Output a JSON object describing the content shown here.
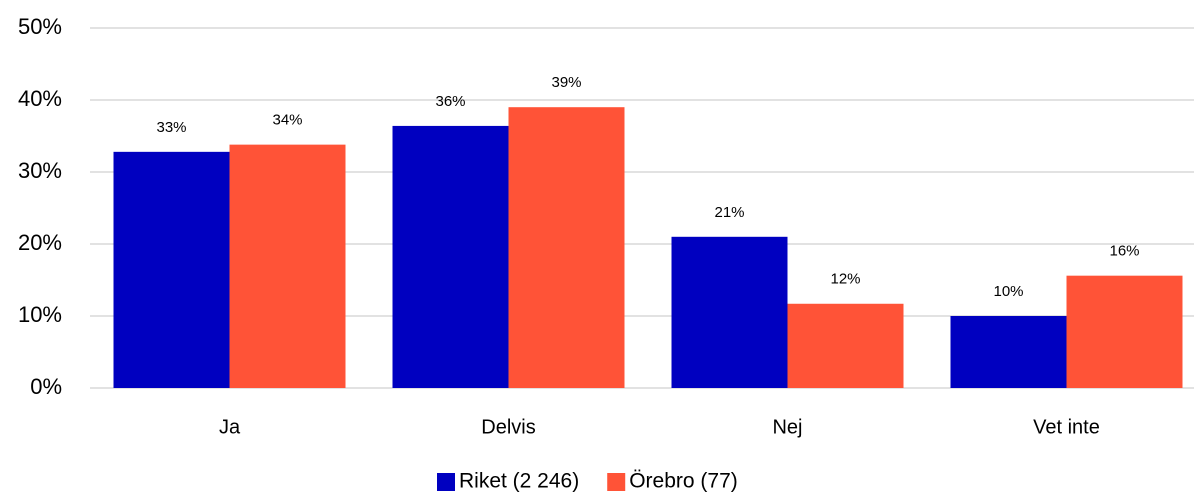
{
  "chart_data": {
    "type": "bar",
    "categories": [
      "Ja",
      "Delvis",
      "Nej",
      "Vet inte"
    ],
    "series": [
      {
        "name": "Riket (2 246)",
        "color": "#0000c0",
        "values": [
          32.8,
          36.4,
          21.0,
          10.0
        ],
        "value_labels": [
          "33%",
          "36%",
          "21%",
          "10%"
        ]
      },
      {
        "name": "Örebro (77)",
        "color": "#ff5337",
        "values": [
          33.8,
          39.0,
          11.7,
          15.6
        ],
        "value_labels": [
          "34%",
          "39%",
          "12%",
          "16%"
        ]
      }
    ],
    "ylim": [
      0,
      50
    ],
    "yticks": [
      {
        "value": 0,
        "label": "0%"
      },
      {
        "value": 10,
        "label": "10%"
      },
      {
        "value": 20,
        "label": "20%"
      },
      {
        "value": 30,
        "label": "30%"
      },
      {
        "value": 40,
        "label": "40%"
      },
      {
        "value": 50,
        "label": "50%"
      }
    ],
    "grid": true,
    "legend": "bottom"
  }
}
